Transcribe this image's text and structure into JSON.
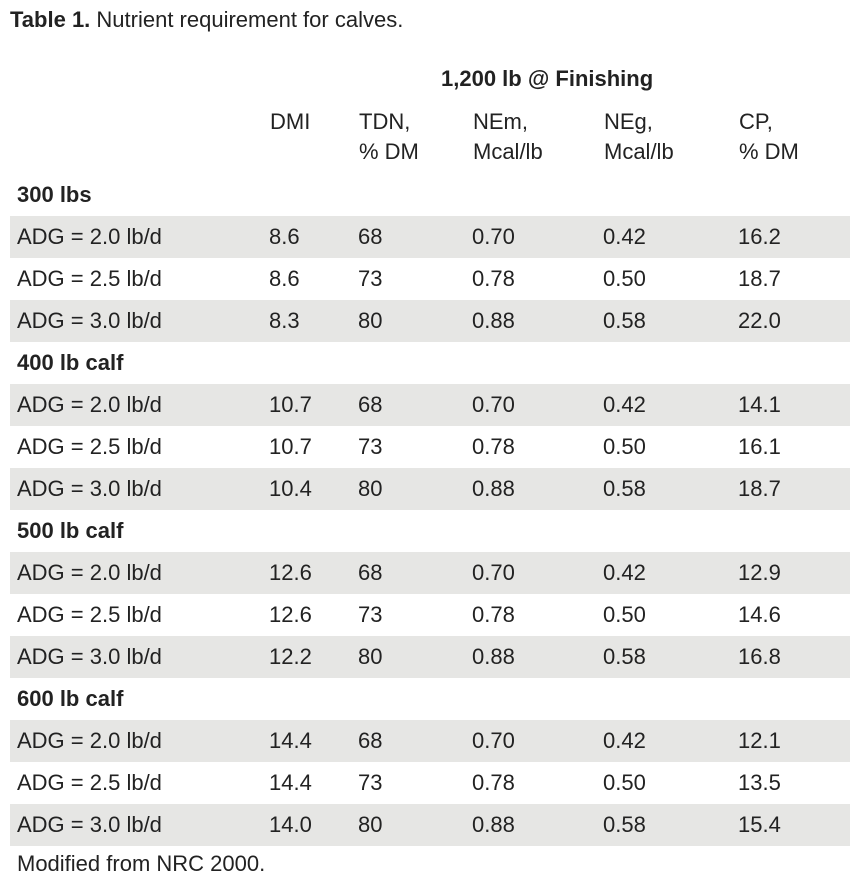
{
  "caption": {
    "label": "Table 1.",
    "text": " Nutrient requirement for calves."
  },
  "group_header": "1,200 lb @ Finishing",
  "columns": [
    {
      "line1": "DMI",
      "line2": ""
    },
    {
      "line1": "TDN,",
      "line2": "% DM"
    },
    {
      "line1": "NEm,",
      "line2": "Mcal/lb"
    },
    {
      "line1": "NEg,",
      "line2": "Mcal/lb"
    },
    {
      "line1": "CP,",
      "line2": "% DM"
    }
  ],
  "groups": [
    {
      "label": "300 lbs",
      "rows": [
        [
          "ADG = 2.0 lb/d",
          "8.6",
          "68",
          "0.70",
          "0.42",
          "16.2"
        ],
        [
          "ADG = 2.5 lb/d",
          "8.6",
          "73",
          "0.78",
          "0.50",
          "18.7"
        ],
        [
          "ADG = 3.0 lb/d",
          "8.3",
          "80",
          "0.88",
          "0.58",
          "22.0"
        ]
      ]
    },
    {
      "label": "400 lb calf",
      "rows": [
        [
          "ADG = 2.0 lb/d",
          "10.7",
          "68",
          "0.70",
          "0.42",
          "14.1"
        ],
        [
          "ADG = 2.5 lb/d",
          "10.7",
          "73",
          "0.78",
          "0.50",
          "16.1"
        ],
        [
          "ADG = 3.0 lb/d",
          "10.4",
          "80",
          "0.88",
          "0.58",
          "18.7"
        ]
      ]
    },
    {
      "label": "500 lb calf",
      "rows": [
        [
          "ADG = 2.0 lb/d",
          "12.6",
          "68",
          "0.70",
          "0.42",
          "12.9"
        ],
        [
          "ADG = 2.5 lb/d",
          "12.6",
          "73",
          "0.78",
          "0.50",
          "14.6"
        ],
        [
          "ADG = 3.0 lb/d",
          "12.2",
          "80",
          "0.88",
          "0.58",
          "16.8"
        ]
      ]
    },
    {
      "label": "600 lb calf",
      "rows": [
        [
          "ADG = 2.0 lb/d",
          "14.4",
          "68",
          "0.70",
          "0.42",
          "12.1"
        ],
        [
          "ADG = 2.5 lb/d",
          "14.4",
          "73",
          "0.78",
          "0.50",
          "13.5"
        ],
        [
          "ADG = 3.0 lb/d",
          "14.0",
          "80",
          "0.88",
          "0.58",
          "15.4"
        ]
      ]
    }
  ],
  "footnote": "Modified from NRC 2000.",
  "colors": {
    "row_shade": "#e6e6e4",
    "text": "#222222"
  }
}
